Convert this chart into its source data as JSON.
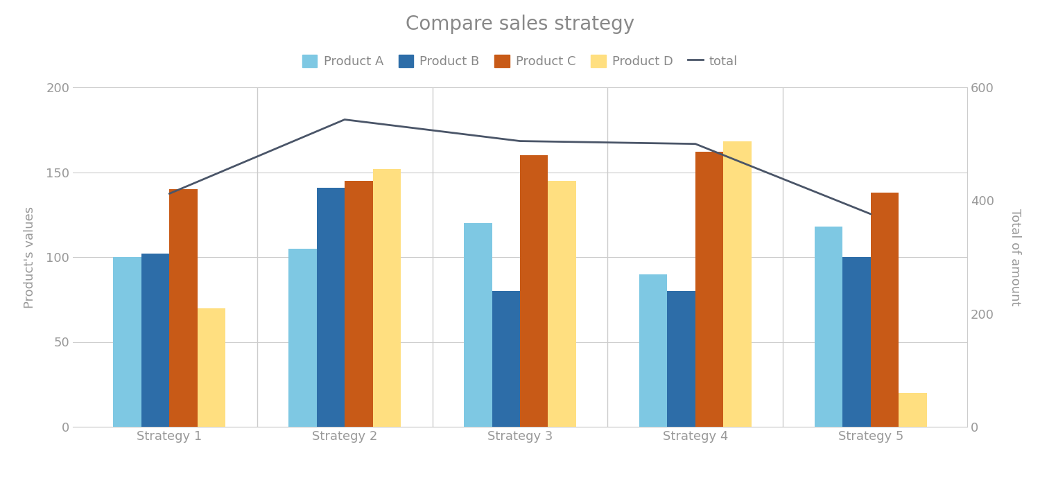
{
  "title": "Compare sales strategy",
  "ylabel_left": "Product's values",
  "ylabel_right": "Total of amount",
  "categories": [
    "Strategy 1",
    "Strategy 2",
    "Strategy 3",
    "Strategy 4",
    "Strategy 5"
  ],
  "products": [
    "Product A",
    "Product B",
    "Product C",
    "Product D"
  ],
  "product_A": [
    100,
    105,
    120,
    90,
    118
  ],
  "product_B": [
    102,
    141,
    80,
    80,
    100
  ],
  "product_C": [
    140,
    145,
    160,
    162,
    138
  ],
  "product_D": [
    70,
    152,
    145,
    168,
    20
  ],
  "total": [
    412,
    543,
    505,
    500,
    376
  ],
  "colors": {
    "product_A": "#7EC8E3",
    "product_B": "#2D6DA8",
    "product_C": "#C85A17",
    "product_D": "#FFDF80",
    "total": "#4A5568"
  },
  "ylim_left": [
    0,
    200
  ],
  "ylim_right": [
    0,
    600
  ],
  "yticks_left": [
    0,
    50,
    100,
    150,
    200
  ],
  "yticks_right": [
    0,
    200,
    400,
    600
  ],
  "background_color": "#FFFFFF",
  "title_fontsize": 20,
  "label_fontsize": 13,
  "tick_fontsize": 13,
  "legend_fontsize": 13,
  "bar_width": 0.16,
  "line_width": 2.0
}
